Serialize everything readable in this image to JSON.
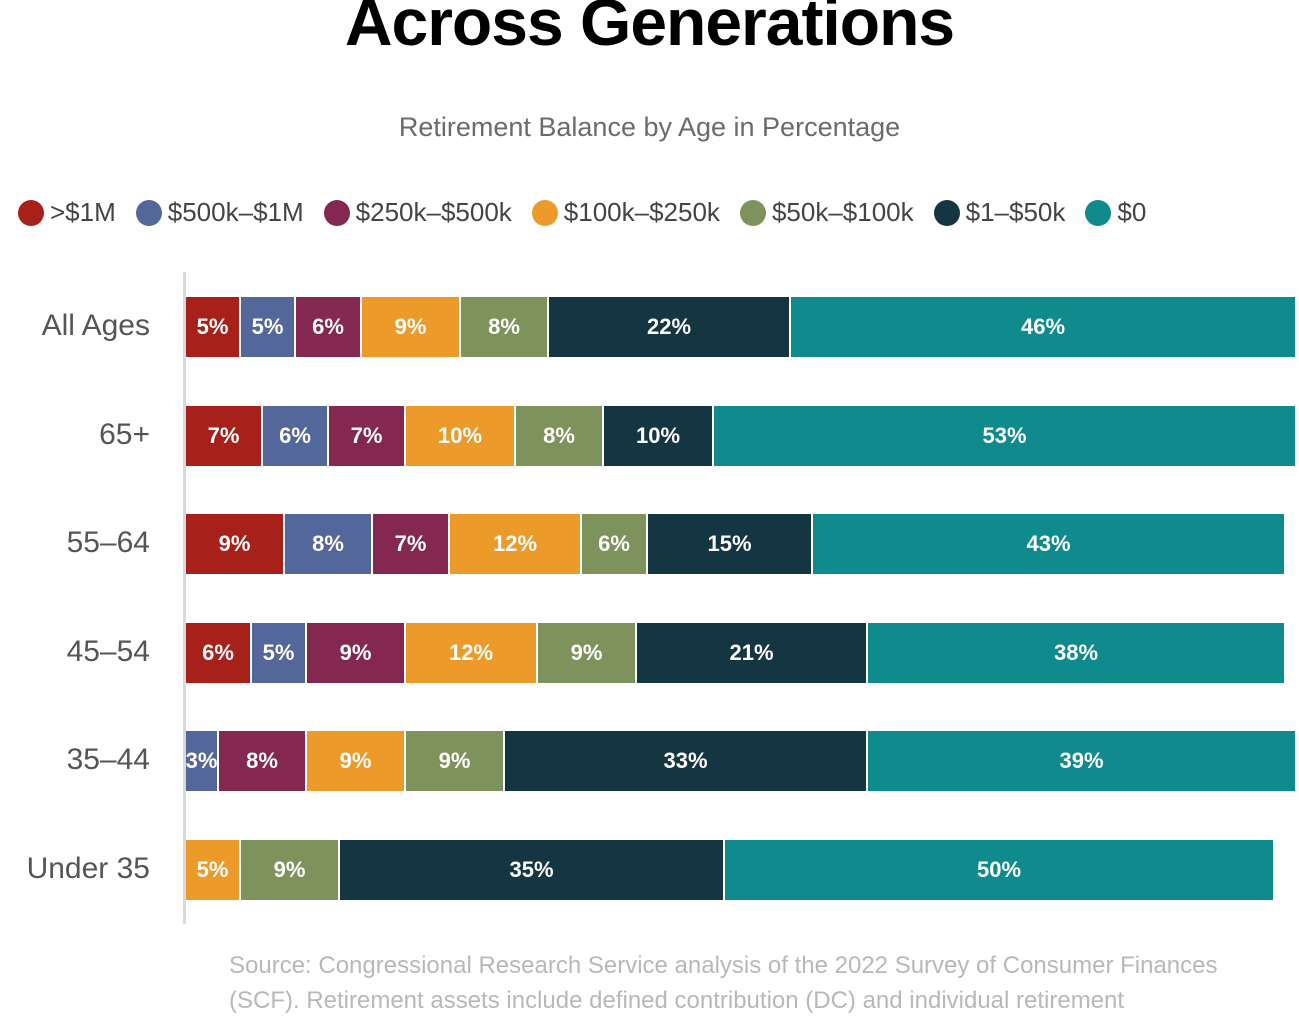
{
  "title": "Across Generations",
  "subtitle": "Retirement Balance by Age in Percentage",
  "source": "Source: Congressional Research Service analysis of the 2022 Survey of Consumer Finances (SCF). Retirement assets include defined contribution (DC) and individual retirement",
  "chart_data": {
    "type": "bar",
    "orientation": "horizontal",
    "stacked": true,
    "title": "Across Generations",
    "subtitle": "Retirement Balance by Age in Percentage",
    "legend_position": "top",
    "grid": false,
    "categories": [
      "All Ages",
      "65+",
      "55–64",
      "45–54",
      "35–44",
      "Under 35"
    ],
    "series": [
      {
        "name": ">$1M",
        "color": "#a8201a",
        "values": [
          5,
          7,
          9,
          6,
          0,
          0
        ]
      },
      {
        "name": "$500k–$1M",
        "color": "#54679a",
        "values": [
          5,
          6,
          8,
          5,
          3,
          0
        ]
      },
      {
        "name": "$250k–$500k",
        "color": "#842751",
        "values": [
          6,
          7,
          7,
          9,
          8,
          0
        ]
      },
      {
        "name": "$100k–$250k",
        "color": "#ec9a29",
        "values": [
          9,
          10,
          12,
          12,
          9,
          5
        ]
      },
      {
        "name": "$50k–$100k",
        "color": "#7e935b",
        "values": [
          8,
          8,
          6,
          9,
          9,
          9
        ]
      },
      {
        "name": "$1–$50k",
        "color": "#143642",
        "values": [
          22,
          10,
          15,
          21,
          33,
          35
        ]
      },
      {
        "name": "$0",
        "color": "#0f8b8d",
        "values": [
          46,
          53,
          43,
          38,
          39,
          50
        ]
      }
    ]
  }
}
